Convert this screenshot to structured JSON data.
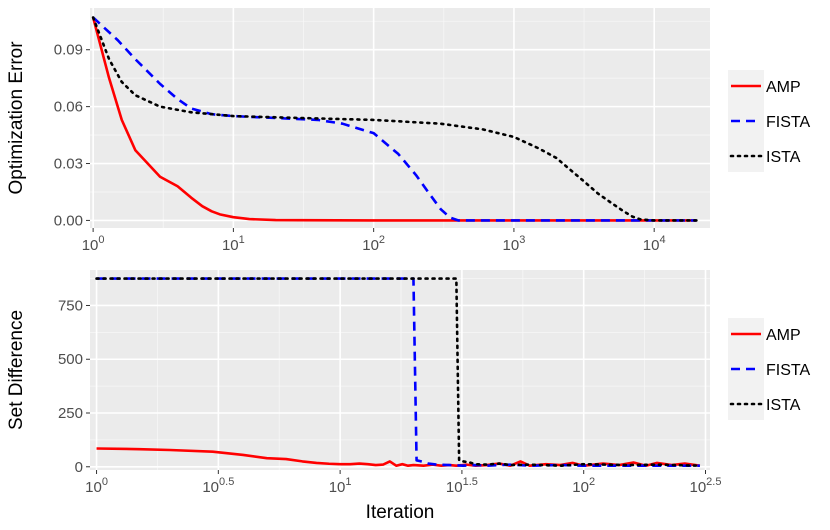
{
  "chart_data": [
    {
      "type": "line",
      "ylabel": "Optimization Error",
      "xlabel": "",
      "x_scale": "log10",
      "xlim": [
        0.95,
        25000
      ],
      "ylim": [
        -0.004,
        0.112
      ],
      "x_tick_labels": [
        "10^0",
        "10^1",
        "10^2",
        "10^3",
        "10^4"
      ],
      "y_tick_labels": [
        "0.00",
        "0.03",
        "0.06",
        "0.09"
      ],
      "grid": true,
      "legend_placement": "right",
      "series": [
        {
          "name": "AMP",
          "color": "#ff0000",
          "dash": "solid",
          "x": [
            1,
            1.3,
            1.6,
            2,
            3,
            4,
            5,
            6,
            7,
            8,
            10,
            13,
            20,
            30,
            100,
            1000,
            10000,
            20000
          ],
          "y": [
            0.107,
            0.075,
            0.053,
            0.037,
            0.023,
            0.018,
            0.012,
            0.0075,
            0.0048,
            0.0032,
            0.0017,
            0.0007,
            0.0002,
            0.0001,
            0.0,
            0.0,
            0.0,
            0.0
          ]
        },
        {
          "name": "FISTA",
          "color": "#0000ff",
          "dash": "dashed",
          "x": [
            1,
            1.5,
            2,
            3,
            4,
            5,
            7,
            10,
            20,
            40,
            60,
            100,
            150,
            200,
            250,
            300,
            350,
            400,
            500,
            1000,
            10000,
            20000
          ],
          "y": [
            0.107,
            0.095,
            0.085,
            0.072,
            0.064,
            0.059,
            0.056,
            0.055,
            0.054,
            0.053,
            0.051,
            0.046,
            0.035,
            0.024,
            0.014,
            0.006,
            0.0015,
            0.0,
            0.0,
            0.0,
            0.0,
            0.0
          ]
        },
        {
          "name": "ISTA",
          "color": "#000000",
          "dash": "dotted",
          "x": [
            1,
            1.3,
            1.6,
            2,
            3,
            5,
            10,
            30,
            100,
            300,
            600,
            1000,
            1500,
            2000,
            3000,
            4000,
            5000,
            6000,
            7000,
            8000,
            10000,
            20000
          ],
          "y": [
            0.107,
            0.085,
            0.073,
            0.066,
            0.06,
            0.057,
            0.055,
            0.054,
            0.053,
            0.051,
            0.048,
            0.044,
            0.038,
            0.033,
            0.022,
            0.014,
            0.009,
            0.005,
            0.002,
            0.0005,
            0.0,
            0.0
          ]
        }
      ]
    },
    {
      "type": "line",
      "ylabel": "Set Difference",
      "xlabel": "Iteration",
      "x_scale": "log10",
      "xlim": [
        0.94,
        330
      ],
      "ylim": [
        -15,
        915
      ],
      "x_tick_labels": [
        "10^0",
        "10^0.5",
        "10^1",
        "10^1.5",
        "10^2",
        "10^2.5"
      ],
      "y_tick_labels": [
        "0",
        "250",
        "500",
        "750"
      ],
      "grid": true,
      "legend_placement": "right",
      "series": [
        {
          "name": "AMP",
          "color": "#ff0000",
          "dash": "solid",
          "x": [
            1,
            1.5,
            2,
            3,
            4,
            5,
            6,
            7,
            8,
            9,
            10,
            11,
            12,
            13,
            14,
            15,
            16,
            17,
            18,
            19,
            20,
            22,
            24,
            26,
            28,
            30,
            33,
            36,
            40,
            45,
            50,
            55,
            60,
            70,
            80,
            90,
            100,
            120,
            140,
            160,
            180,
            200,
            230,
            260,
            300
          ],
          "y": [
            85,
            82,
            78,
            70,
            55,
            40,
            36,
            25,
            18,
            14,
            12,
            12,
            15,
            12,
            8,
            10,
            25,
            5,
            12,
            5,
            8,
            5,
            10,
            5,
            8,
            5,
            10,
            5,
            8,
            15,
            5,
            25,
            5,
            12,
            8,
            18,
            5,
            15,
            8,
            20,
            5,
            18,
            8,
            15,
            5
          ]
        },
        {
          "name": "FISTA",
          "color": "#0000ff",
          "dash": "dashed",
          "x": [
            1,
            20,
            20.6,
            21.5,
            23,
            25,
            28,
            32,
            36,
            40,
            50,
            60,
            80,
            100,
            150,
            200,
            300
          ],
          "y": [
            875,
            875,
            30,
            25,
            15,
            10,
            8,
            5,
            8,
            5,
            10,
            5,
            8,
            5,
            5,
            5,
            5
          ]
        },
        {
          "name": "ISTA",
          "color": "#000000",
          "dash": "dotted",
          "x": [
            1,
            30,
            30.8,
            32,
            34,
            36,
            40,
            45,
            50,
            60,
            80,
            100,
            150,
            200,
            300
          ],
          "y": [
            875,
            875,
            30,
            25,
            20,
            12,
            10,
            15,
            8,
            10,
            5,
            12,
            8,
            10,
            5
          ]
        }
      ]
    }
  ]
}
